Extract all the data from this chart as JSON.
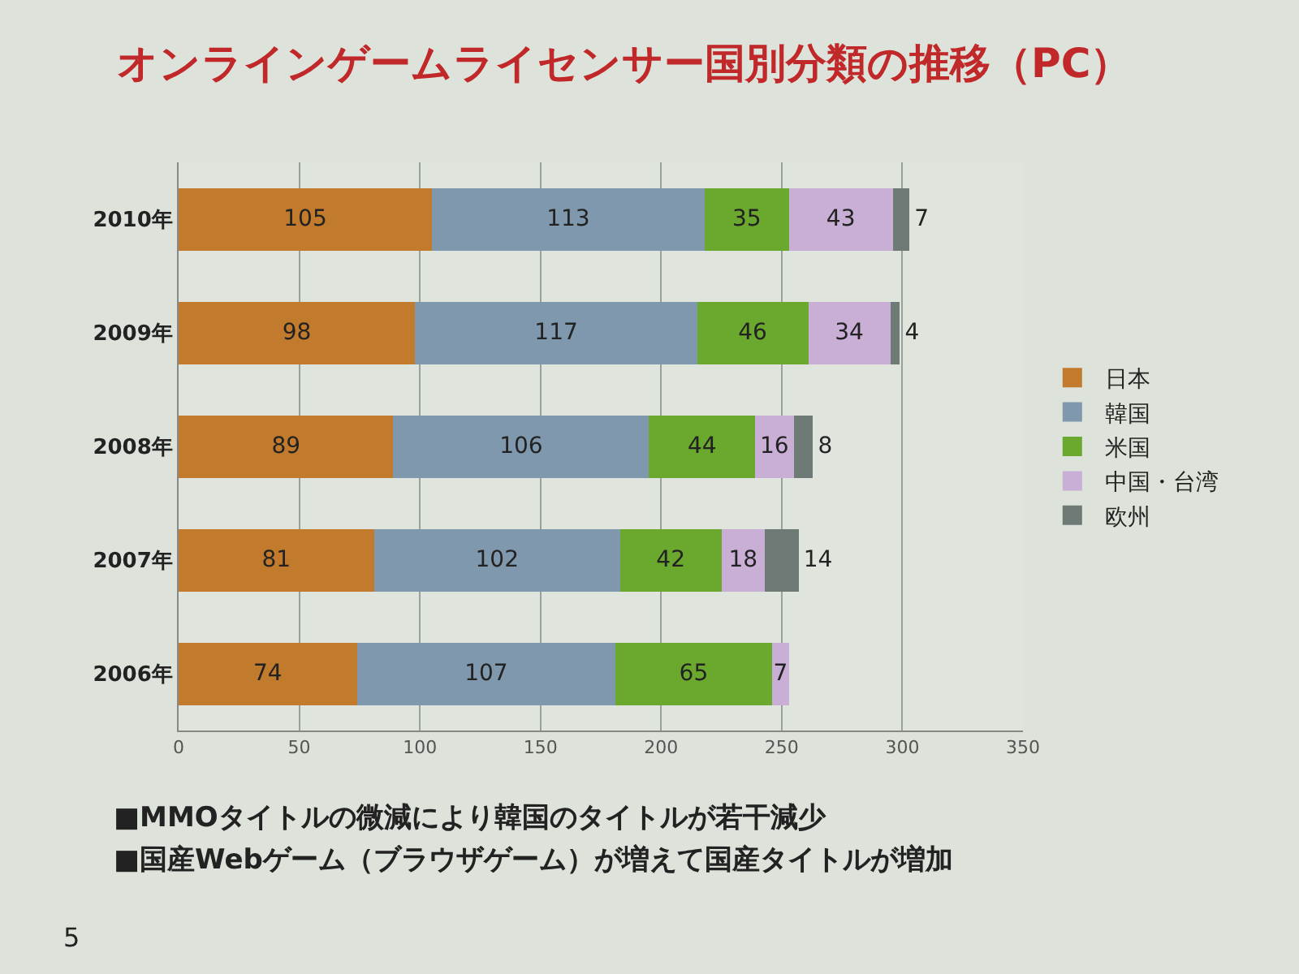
{
  "chart_data": {
    "type": "bar",
    "orientation": "horizontal",
    "stacked": true,
    "title": "オンラインゲームライセンサー国別分類の推移（PC）",
    "categories": [
      "2010年",
      "2009年",
      "2008年",
      "2007年",
      "2006年"
    ],
    "series": [
      {
        "name": "日本",
        "color": "#c27a2c",
        "values": [
          105,
          98,
          89,
          81,
          74
        ]
      },
      {
        "name": "韓国",
        "color": "#7f98ad",
        "values": [
          113,
          117,
          106,
          102,
          107
        ]
      },
      {
        "name": "米国",
        "color": "#6aa82e",
        "values": [
          35,
          46,
          44,
          42,
          65
        ]
      },
      {
        "name": "中国・台湾",
        "color": "#c9afd6",
        "values": [
          43,
          34,
          16,
          18,
          7
        ]
      },
      {
        "name": "欧州",
        "color": "#6d7a76",
        "values": [
          7,
          4,
          8,
          14,
          null
        ]
      }
    ],
    "xlim": [
      0,
      350
    ],
    "xticks": [
      0,
      50,
      100,
      150,
      200,
      250,
      300,
      350
    ],
    "grid": "x",
    "legend": "right",
    "data_labels": true,
    "annotations": [
      "■MMOタイトルの微減により韓国のタイトルが若干減少",
      "■国産Webゲーム（ブラウザゲーム）が増えて国産タイトルが増加",
      "5"
    ]
  }
}
